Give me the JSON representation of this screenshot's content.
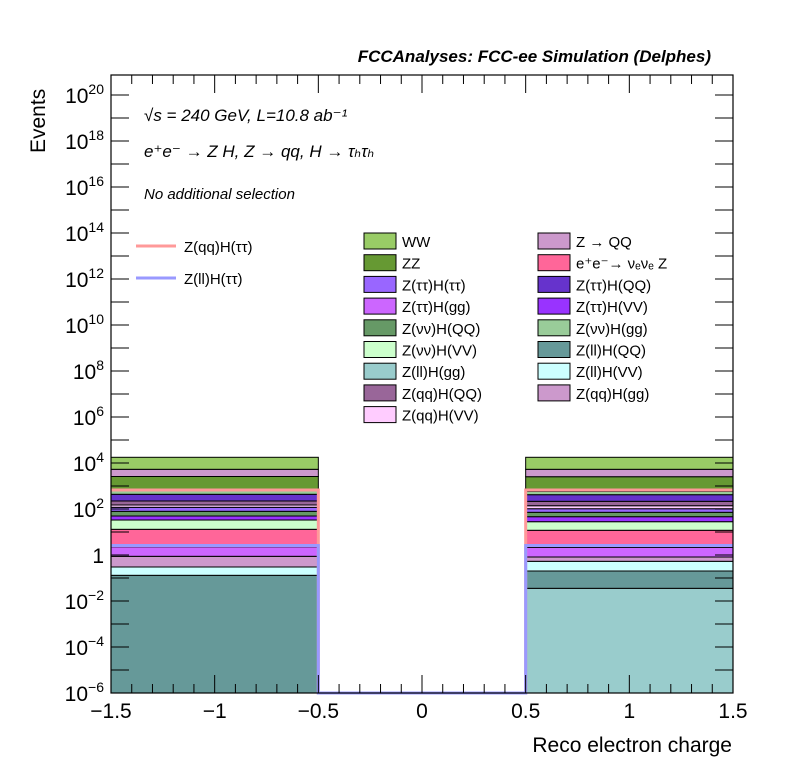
{
  "chart_data": {
    "type": "bar",
    "stacked": true,
    "title": "FCCAnalyses: FCC-ee Simulation (Delphes)",
    "xlabel": "Reco electron charge",
    "ylabel": "Events",
    "xlim": [
      -1.5,
      1.5
    ],
    "ylim_log10": [
      -6,
      20.87
    ],
    "yscale": "log",
    "x_ticks": [
      "−1.5",
      "−1",
      "−0.5",
      "0",
      "0.5",
      "1",
      "1.5"
    ],
    "x_tick_values": [
      -1.5,
      -1,
      -0.5,
      0,
      0.5,
      1,
      1.5
    ],
    "y_tick_exponents": [
      -6,
      -4,
      -2,
      0,
      2,
      4,
      6,
      8,
      10,
      12,
      14,
      16,
      18,
      20
    ],
    "annotations": [
      "√s = 240 GeV, L=10.8 ab⁻¹",
      "e⁺e⁻ → Z H, Z → qq, H → τₕτₕ",
      "No additional selection"
    ],
    "bins": [
      [
        -1.5,
        -0.5
      ],
      [
        -0.5,
        0.5
      ],
      [
        0.5,
        1.5
      ]
    ],
    "stack_order_bottom_to_top": [
      "Z(ll)H(gg)",
      "Z(ll)H(QQ)",
      "Z(ll)H(VV)",
      "Z(qq)H(gg)",
      "Z(ττ)H(gg)",
      "e⁺e⁻→ νₑνₑ Z",
      "Z(νν)H(VV)",
      "Z(ττ)H(VV)",
      "Z(νν)H(QQ)",
      "Z(ττ)H(ττ)",
      "Z(qq)H(VV)",
      "Z(qq)H(QQ)",
      "Z(ττ)H(QQ)",
      "Z(νν)H(gg)",
      "ZZ",
      "Z → QQ",
      "WW"
    ],
    "backgrounds": [
      {
        "name": "WW",
        "color": "#99CC66",
        "values": [
          12379,
          0,
          12379
        ]
      },
      {
        "name": "ZZ",
        "color": "#669933",
        "values": [
          1918,
          0,
          1946
        ]
      },
      {
        "name": "Z(ττ)H(ττ)",
        "color": "#9966FF",
        "values": [
          39,
          0,
          31
        ]
      },
      {
        "name": "Z(ττ)H(gg)",
        "color": "#CC66FF",
        "values": [
          1.42,
          0,
          1.35
        ]
      },
      {
        "name": "Z(νν)H(QQ)",
        "color": "#669966",
        "values": [
          29.8,
          0,
          25.6
        ]
      },
      {
        "name": "Z(νν)H(VV)",
        "color": "#CCFFCC",
        "values": [
          20.1,
          0,
          16.2
        ]
      },
      {
        "name": "Z(ll)H(gg)",
        "color": "#99CCCC",
        "values": [
          0,
          0,
          0.0356
        ]
      },
      {
        "name": "Z(qq)H(QQ)",
        "color": "#996699",
        "values": [
          74,
          0,
          77
        ]
      },
      {
        "name": "Z(qq)H(VV)",
        "color": "#FFCCFF",
        "values": [
          31,
          0,
          36
        ]
      },
      {
        "name": "Z → QQ",
        "color": "#CC99CC",
        "values": [
          2733,
          0,
          2786
        ]
      },
      {
        "name": "e⁺e⁻→ νₑνₑ Z",
        "color": "#FF6699",
        "values": [
          10.8,
          0,
          9.7
        ]
      },
      {
        "name": "Z(ττ)H(QQ)",
        "color": "#6633CC",
        "values": [
          213,
          0,
          203
        ]
      },
      {
        "name": "Z(ττ)H(VV)",
        "color": "#9933FF",
        "values": [
          16.4,
          0,
          18.2
        ]
      },
      {
        "name": "Z(νν)H(gg)",
        "color": "#99CC99",
        "values": [
          234,
          0,
          170
        ]
      },
      {
        "name": "Z(ll)H(QQ)",
        "color": "#669999",
        "values": [
          0.131,
          0,
          0.166
        ]
      },
      {
        "name": "Z(ll)H(VV)",
        "color": "#CCFFFF",
        "values": [
          0.17,
          0,
          0.33
        ]
      },
      {
        "name": "Z(qq)H(gg)",
        "color": "#CC99CC",
        "values": [
          0.576,
          0,
          0.286
        ]
      }
    ],
    "signals": [
      {
        "name": "Z(qq)H(ττ)",
        "color": "#FF9999",
        "values": [
          670,
          0,
          670
        ]
      },
      {
        "name": "Z(ll)H(ττ)",
        "color": "#9999FF",
        "values": [
          2.6,
          0,
          2.6
        ]
      }
    ],
    "legend_placement": "top-right"
  }
}
